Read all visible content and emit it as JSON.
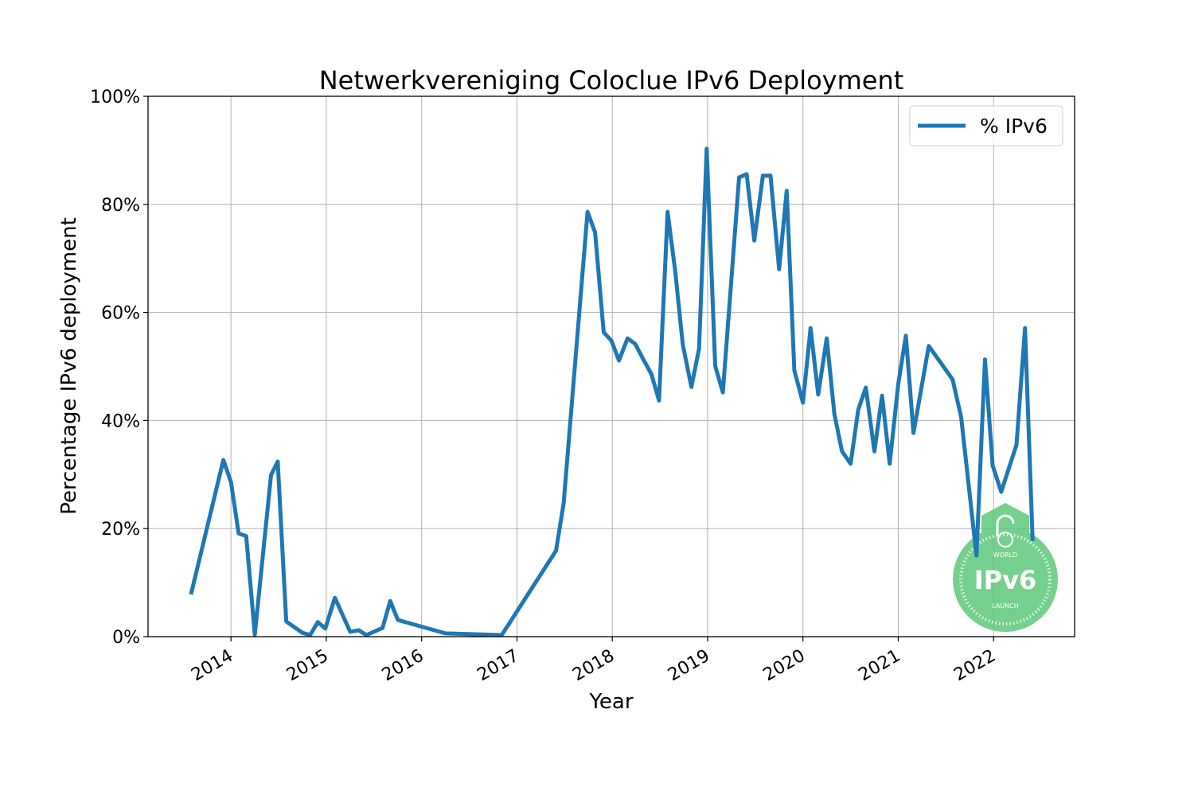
{
  "chart_data": {
    "type": "line",
    "title": "Netwerkvereniging Coloclue IPv6 Deployment",
    "xlabel": "Year",
    "ylabel": "Percentage IPv6 deployment",
    "xlim": [
      2013.13,
      2022.85
    ],
    "ylim": [
      0,
      100
    ],
    "grid": true,
    "legend_position": "top-right",
    "x_ticks": [
      2014,
      2015,
      2016,
      2017,
      2018,
      2019,
      2020,
      2021,
      2022
    ],
    "x_tick_labels": [
      "2014",
      "2015",
      "2016",
      "2017",
      "2018",
      "2019",
      "2020",
      "2021",
      "2022"
    ],
    "y_ticks": [
      0,
      20,
      40,
      60,
      80,
      100
    ],
    "y_tick_labels": [
      "0%",
      "20%",
      "40%",
      "60%",
      "80%",
      "100%"
    ],
    "series": [
      {
        "name": "% IPv6",
        "color": "#1f77b4",
        "x": [
          2013.58,
          2013.92,
          2014.0,
          2014.08,
          2014.16,
          2014.25,
          2014.42,
          2014.49,
          2014.58,
          2014.75,
          2014.83,
          2014.91,
          2014.99,
          2015.09,
          2015.25,
          2015.34,
          2015.42,
          2015.59,
          2015.67,
          2015.75,
          2016.25,
          2016.84,
          2017.41,
          2017.49,
          2017.74,
          2017.82,
          2017.91,
          2017.99,
          2018.07,
          2018.16,
          2018.24,
          2018.32,
          2018.41,
          2018.49,
          2018.58,
          2018.66,
          2018.74,
          2018.83,
          2018.91,
          2018.99,
          2019.08,
          2019.16,
          2019.33,
          2019.41,
          2019.49,
          2019.58,
          2019.66,
          2019.75,
          2019.83,
          2019.91,
          2020.0,
          2020.08,
          2020.16,
          2020.25,
          2020.33,
          2020.41,
          2020.5,
          2020.58,
          2020.66,
          2020.75,
          2020.83,
          2020.91,
          2021.0,
          2021.08,
          2021.16,
          2021.32,
          2021.57,
          2021.66,
          2021.82,
          2021.91,
          2021.99,
          2022.08,
          2022.24,
          2022.33,
          2022.41
        ],
        "values": [
          7.8,
          32.7,
          28.6,
          19.1,
          18.6,
          0.4,
          29.9,
          32.4,
          2.8,
          0.7,
          0.3,
          2.7,
          1.5,
          7.2,
          0.9,
          1.2,
          0.3,
          1.6,
          6.6,
          3.1,
          0.6,
          0.3,
          15.9,
          24.7,
          78.6,
          74.8,
          56.3,
          54.8,
          51.1,
          55.2,
          54.2,
          51.5,
          48.6,
          43.7,
          78.6,
          67.7,
          54.0,
          46.2,
          53.3,
          90.3,
          50.1,
          45.2,
          85.0,
          85.6,
          73.3,
          85.3,
          85.3,
          68.0,
          82.5,
          49.3,
          43.3,
          57.1,
          44.8,
          55.2,
          41.2,
          34.3,
          32.0,
          42.0,
          46.1,
          34.3,
          44.6,
          32.0,
          46.8,
          55.7,
          37.7,
          53.8,
          47.6,
          40.6,
          15.0,
          51.3,
          31.7,
          26.8,
          35.5,
          57.1,
          17.7
        ]
      }
    ]
  },
  "logo": {
    "top": "WORLD",
    "main": "IPv6",
    "bottom": "LAUNCH",
    "color": "#5cc879"
  }
}
